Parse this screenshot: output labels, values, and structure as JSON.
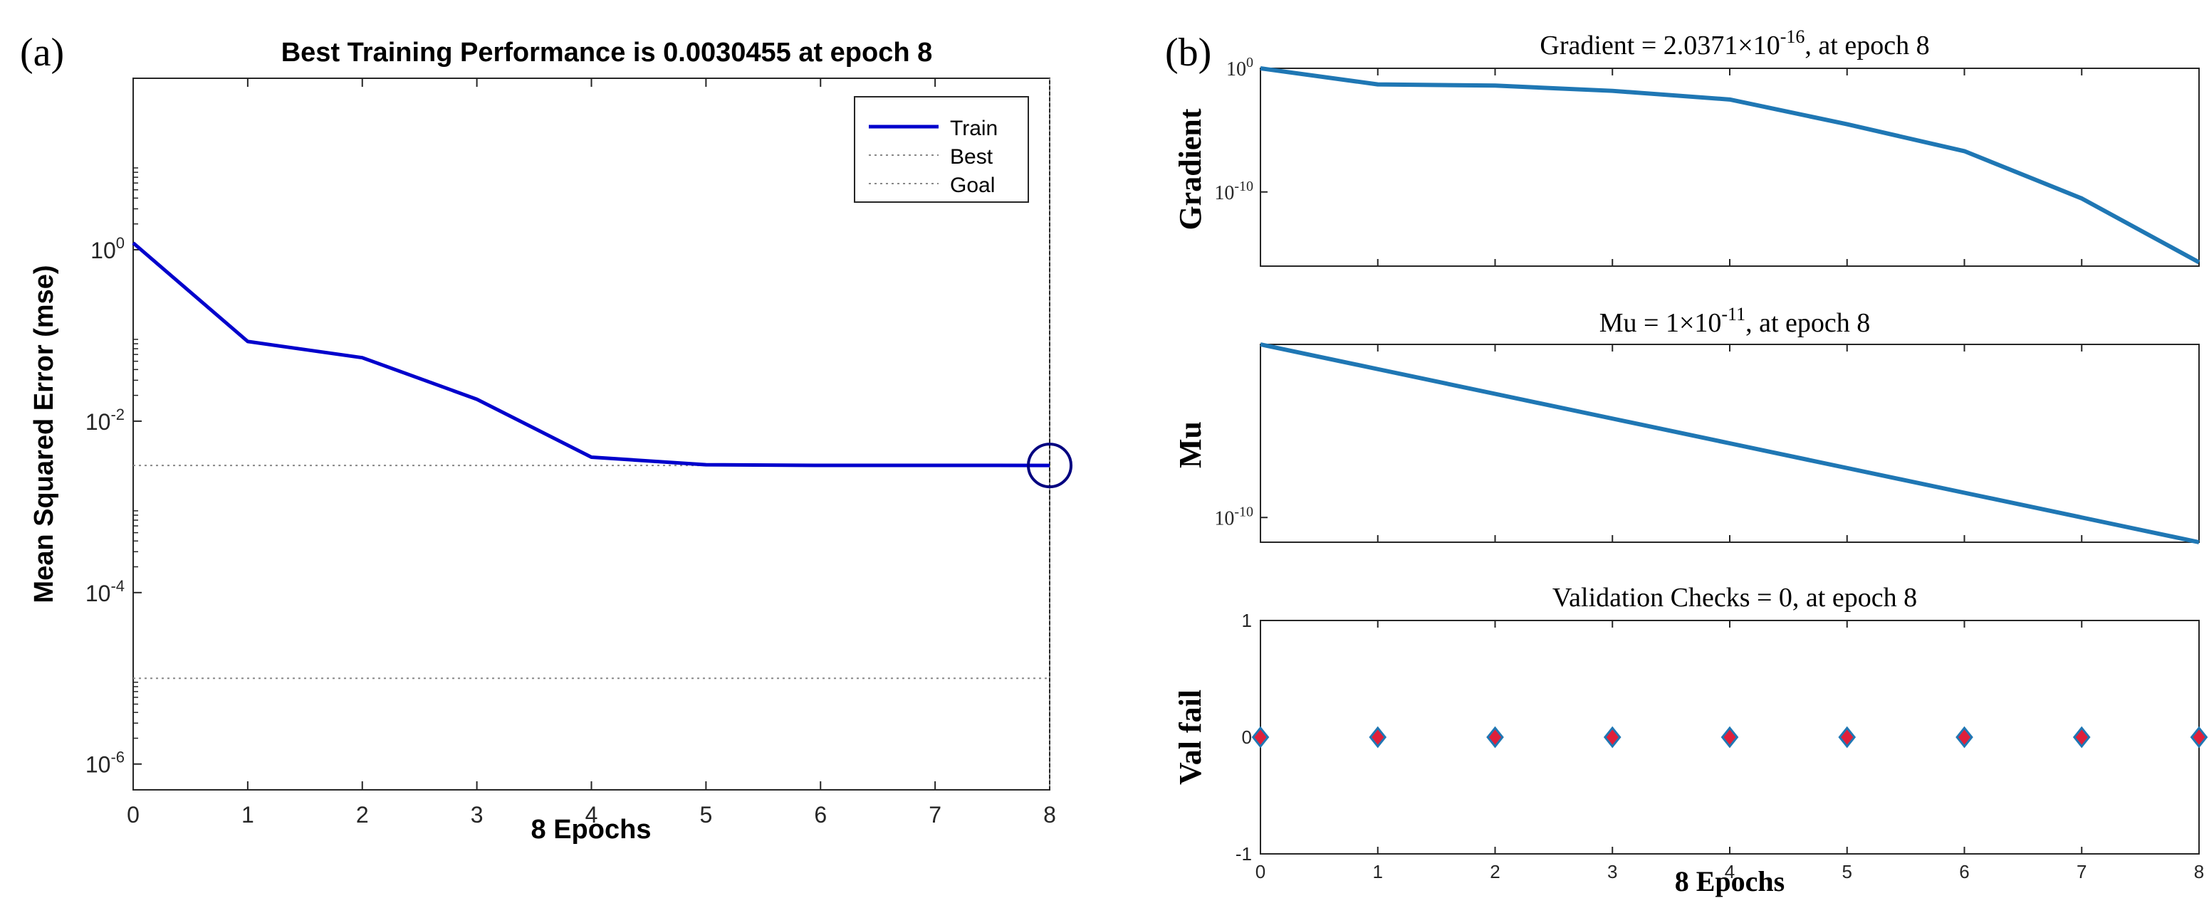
{
  "panel_a": {
    "tag": "(a)",
    "title": "Best Training Performance is 0.0030455 at epoch 8",
    "xlabel": "8 Epochs",
    "ylabel": "Mean Squared Error  (mse)",
    "legend": [
      "Train",
      "Best",
      "Goal"
    ]
  },
  "panel_b": {
    "tag": "(b)",
    "gradient_title": "Gradient = 2.0371×10",
    "gradient_title_exp": "-16",
    "gradient_title_tail": ", at epoch 8",
    "mu_title": "Mu = 1×10",
    "mu_title_exp": "-11",
    "mu_title_tail": ", at epoch 8",
    "val_title": "Validation Checks = 0, at epoch 8",
    "gradient_ylabel": "Gradient",
    "mu_ylabel": "Mu",
    "val_ylabel": "Val fail",
    "xlabel": "8 Epochs"
  },
  "colors": {
    "train": "#0000cc",
    "panel_b_line": "#1f77b4",
    "val_marker_fill": "#e0203a",
    "val_marker_edge": "#1f77b4",
    "best_circle": "#000080",
    "dotted": "#888888"
  },
  "chart_data": [
    {
      "type": "line",
      "yscale": "log",
      "title": "Best Training Performance is 0.0030455 at epoch 8",
      "xlabel": "8 Epochs",
      "ylabel": "Mean Squared Error  (mse)",
      "xlim": [
        0,
        8
      ],
      "ylim": [
        5e-07,
        100
      ],
      "xticks": [
        "0",
        "1",
        "2",
        "3",
        "4",
        "5",
        "6",
        "7",
        "8"
      ],
      "yticks": [
        {
          "value": 1,
          "base": "10",
          "exp": "0"
        },
        {
          "value": 0.01,
          "base": "10",
          "exp": "-2"
        },
        {
          "value": 0.0001,
          "base": "10",
          "exp": "-4"
        },
        {
          "value": 1e-06,
          "base": "10",
          "exp": "-6"
        }
      ],
      "series": [
        {
          "name": "Train",
          "x": [
            0,
            1,
            2,
            3,
            4,
            5,
            6,
            7,
            8
          ],
          "values": [
            1.2,
            0.085,
            0.055,
            0.018,
            0.0038,
            0.0031,
            0.00305,
            0.00305,
            0.0030455
          ]
        }
      ],
      "best": {
        "name": "Best",
        "value": 0.0030455,
        "epoch": 8
      },
      "goal": {
        "name": "Goal",
        "value": 1e-05
      },
      "legend_position": "top-right"
    },
    {
      "type": "line",
      "yscale": "log",
      "title": "Gradient = 2.0371×10^-16, at epoch 8",
      "ylabel": "Gradient",
      "xlim": [
        0,
        8
      ],
      "ylim": [
        1e-16,
        1
      ],
      "yticks": [
        {
          "value": 1,
          "base": "10",
          "exp": "0"
        },
        {
          "value": 1e-10,
          "base": "10",
          "exp": "-10"
        }
      ],
      "series": [
        {
          "name": "Gradient",
          "x": [
            0,
            1,
            2,
            3,
            4,
            5,
            6,
            7,
            8
          ],
          "values": [
            1,
            0.05,
            0.04,
            0.015,
            0.003,
            3e-05,
            2e-07,
            3e-11,
            2.0371e-16
          ]
        }
      ]
    },
    {
      "type": "line",
      "yscale": "log",
      "title": "Mu = 1×10^-11, at epoch 8",
      "ylabel": "Mu",
      "xlim": [
        0,
        8
      ],
      "ylim": [
        1e-11,
        0.001
      ],
      "yticks": [
        {
          "value": 1e-10,
          "base": "10",
          "exp": "-10"
        }
      ],
      "series": [
        {
          "name": "Mu",
          "x": [
            0,
            1,
            2,
            3,
            4,
            5,
            6,
            7,
            8
          ],
          "values": [
            0.001,
            0.0001,
            1e-05,
            1e-06,
            1e-07,
            1e-08,
            1e-09,
            1e-10,
            1e-11
          ]
        }
      ]
    },
    {
      "type": "scatter",
      "title": "Validation Checks = 0, at epoch 8",
      "xlabel": "8 Epochs",
      "ylabel": "Val fail",
      "xlim": [
        0,
        8
      ],
      "ylim": [
        -1,
        1
      ],
      "xticks": [
        "0",
        "1",
        "2",
        "3",
        "4",
        "5",
        "6",
        "7",
        "8"
      ],
      "yticks": [
        "1",
        "0",
        "-1"
      ],
      "series": [
        {
          "name": "Val fail",
          "x": [
            0,
            1,
            2,
            3,
            4,
            5,
            6,
            7,
            8
          ],
          "values": [
            0,
            0,
            0,
            0,
            0,
            0,
            0,
            0,
            0
          ]
        }
      ]
    }
  ]
}
